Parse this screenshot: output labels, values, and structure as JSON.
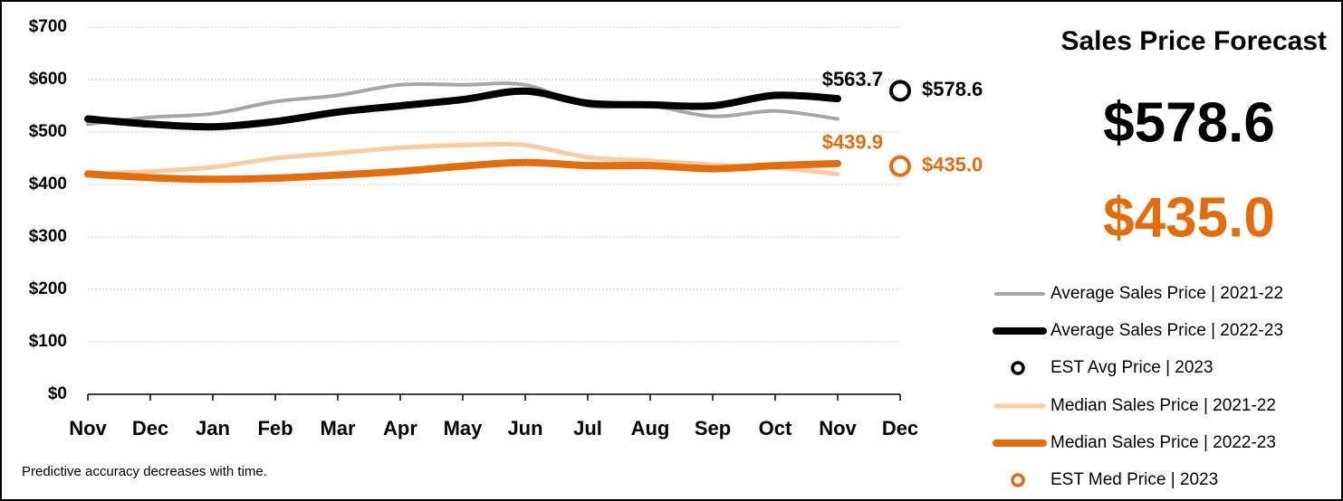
{
  "chart_data": {
    "type": "line",
    "title": "Sales Price Forecast",
    "annotation": "Predictive accuracy decreases with time.",
    "categories": [
      "Nov",
      "Dec",
      "Jan",
      "Feb",
      "Mar",
      "Apr",
      "May",
      "Jun",
      "Jul",
      "Aug",
      "Sep",
      "Oct",
      "Nov",
      "Dec"
    ],
    "ylim": [
      0,
      700
    ],
    "yticks": [
      {
        "value": 0,
        "label": "$0"
      },
      {
        "value": 100,
        "label": "$100"
      },
      {
        "value": 200,
        "label": "$200"
      },
      {
        "value": 300,
        "label": "$300"
      },
      {
        "value": 400,
        "label": "$400"
      },
      {
        "value": 500,
        "label": "$500"
      },
      {
        "value": 600,
        "label": "$600"
      },
      {
        "value": 700,
        "label": "$700"
      }
    ],
    "grid": true,
    "series": [
      {
        "name": "Average Sales Price | 2021-22",
        "color": "#a6a6a6",
        "values": [
          515,
          528,
          535,
          558,
          570,
          590,
          590,
          590,
          550,
          550,
          530,
          540,
          525,
          null
        ]
      },
      {
        "name": "Average Sales Price | 2022-23",
        "color": "#000000",
        "values": [
          525,
          515,
          510,
          520,
          538,
          550,
          562,
          578,
          555,
          552,
          550,
          570,
          563.7,
          null
        ],
        "value_labels": [
          null,
          null,
          null,
          null,
          null,
          null,
          null,
          null,
          null,
          null,
          null,
          null,
          "$563.7",
          null
        ]
      },
      {
        "name": "EST Avg Price | 2023",
        "color": "#000000",
        "marker": "circle",
        "values": [
          null,
          null,
          null,
          null,
          null,
          null,
          null,
          null,
          null,
          null,
          null,
          null,
          null,
          578.6
        ],
        "value_labels": [
          null,
          null,
          null,
          null,
          null,
          null,
          null,
          null,
          null,
          null,
          null,
          null,
          null,
          "$578.6"
        ]
      },
      {
        "name": "Median Sales Price | 2021-22",
        "color": "#f8cba0",
        "values": [
          420,
          425,
          433,
          450,
          460,
          470,
          475,
          475,
          452,
          445,
          438,
          432,
          420,
          null
        ]
      },
      {
        "name": "Median Sales Price | 2022-23",
        "color": "#e46c0a",
        "values": [
          420,
          413,
          410,
          412,
          418,
          425,
          435,
          442,
          436,
          436,
          430,
          436,
          439.9,
          null
        ],
        "value_labels": [
          null,
          null,
          null,
          null,
          null,
          null,
          null,
          null,
          null,
          null,
          null,
          null,
          "$439.9",
          null
        ]
      },
      {
        "name": "EST Med Price | 2023",
        "color": "#e46c0a",
        "marker": "circle",
        "values": [
          null,
          null,
          null,
          null,
          null,
          null,
          null,
          null,
          null,
          null,
          null,
          null,
          null,
          435.0
        ],
        "value_labels": [
          null,
          null,
          null,
          null,
          null,
          null,
          null,
          null,
          null,
          null,
          null,
          null,
          null,
          "$435.0"
        ]
      }
    ]
  }
}
